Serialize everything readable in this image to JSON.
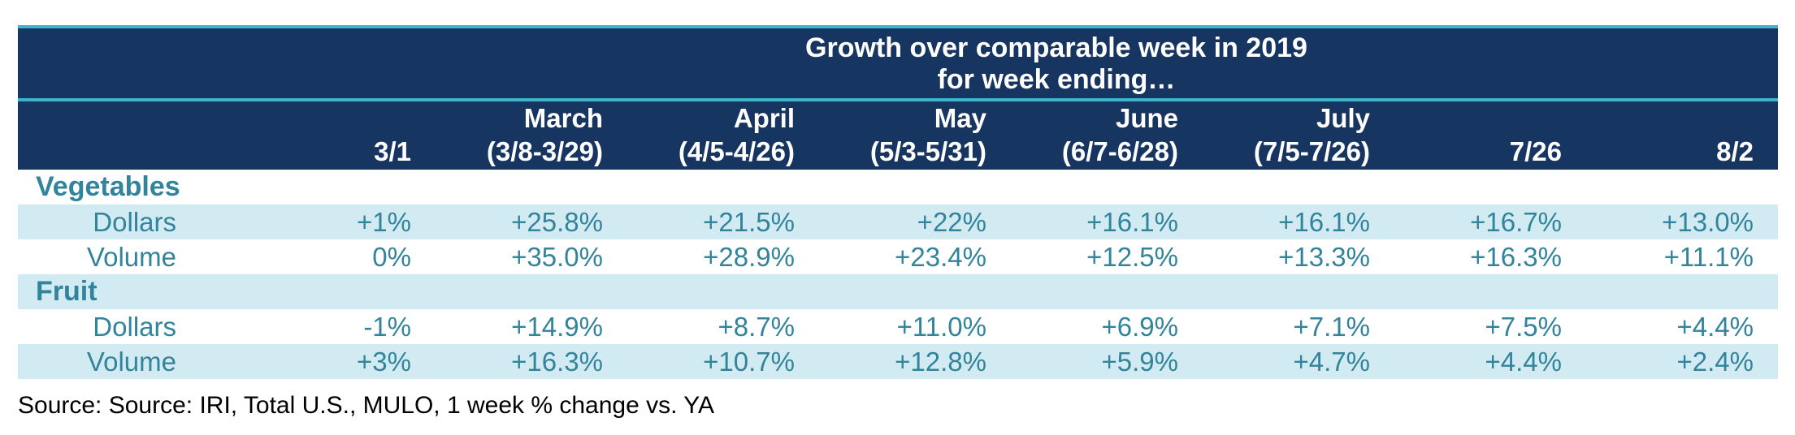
{
  "header": {
    "title_line1": "Growth over comparable week in 2019",
    "title_line2": "for week ending…",
    "columns": [
      {
        "line1": "",
        "line2": ""
      },
      {
        "line1": "",
        "line2": "3/1"
      },
      {
        "line1": "March",
        "line2": "(3/8-3/29)"
      },
      {
        "line1": "April",
        "line2": "(4/5-4/26)"
      },
      {
        "line1": "May",
        "line2": "(5/3-5/31)"
      },
      {
        "line1": "June",
        "line2": "(6/7-6/28)"
      },
      {
        "line1": "July",
        "line2": "(7/5-7/26)"
      },
      {
        "line1": "",
        "line2": "7/26"
      },
      {
        "line1": "",
        "line2": "8/2"
      }
    ]
  },
  "sections": [
    {
      "name": "Vegetables",
      "rows": [
        {
          "label": "Dollars",
          "values": [
            "+1%",
            "+25.8%",
            "+21.5%",
            "+22%",
            "+16.1%",
            "+16.1%",
            "+16.7%",
            "+13.0%"
          ]
        },
        {
          "label": "Volume",
          "values": [
            "0%",
            "+35.0%",
            "+28.9%",
            "+23.4%",
            "+12.5%",
            "+13.3%",
            "+16.3%",
            "+11.1%"
          ]
        }
      ]
    },
    {
      "name": "Fruit",
      "rows": [
        {
          "label": "Dollars",
          "values": [
            "-1%",
            "+14.9%",
            "+8.7%",
            "+11.0%",
            "+6.9%",
            "+7.1%",
            "+7.5%",
            "+4.4%"
          ]
        },
        {
          "label": "Volume",
          "values": [
            "+3%",
            "+16.3%",
            "+10.7%",
            "+12.8%",
            "+5.9%",
            "+4.7%",
            "+4.4%",
            "+2.4%"
          ]
        }
      ]
    }
  ],
  "source": "Source: Source: IRI, Total U.S., MULO, 1 week % change vs. YA",
  "colors": {
    "header_bg": "#173561",
    "accent_line": "#3fb3cc",
    "shade": "#d2ebf2",
    "text_teal": "#31849b"
  }
}
